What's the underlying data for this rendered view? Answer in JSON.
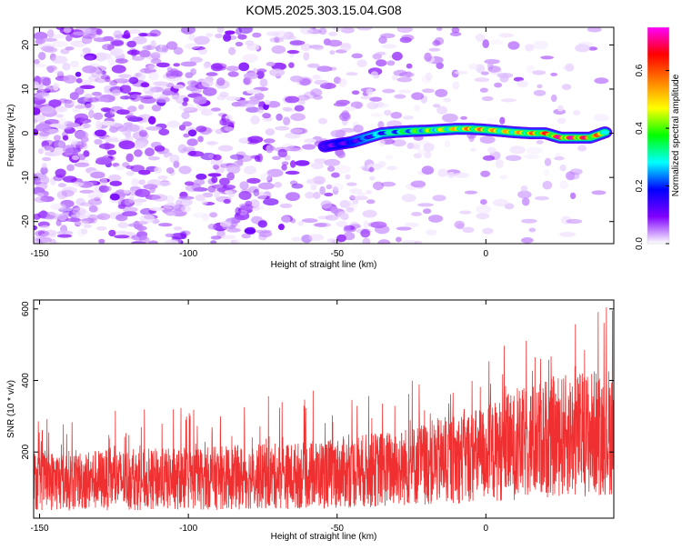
{
  "title": "KOM5.2025.303.15.04.G08",
  "chart_data": [
    {
      "type": "heatmap",
      "title": "KOM5.2025.303.15.04.G08",
      "xlabel": "Height of straight line (km)",
      "ylabel": "Frequency (Hz)",
      "xlim": [
        -152,
        43
      ],
      "ylim": [
        -25,
        24
      ],
      "xticks": [
        -150,
        -100,
        -50,
        0
      ],
      "yticks": [
        -20,
        -10,
        0,
        10,
        20
      ],
      "signal_track": {
        "x": [
          -54,
          -50,
          -45,
          -40,
          -35,
          -30,
          -25,
          -20,
          -15,
          -10,
          -5,
          0,
          5,
          10,
          15,
          20,
          25,
          30,
          35,
          40
        ],
        "y": [
          -3,
          -2.5,
          -2,
          -1,
          0,
          0.3,
          0.5,
          0.6,
          0.8,
          1,
          1,
          0.8,
          0.5,
          0.2,
          0,
          0,
          -1,
          -1,
          -1,
          0.2
        ],
        "amplitude": [
          0.15,
          0.18,
          0.2,
          0.25,
          0.3,
          0.35,
          0.4,
          0.45,
          0.5,
          0.55,
          0.6,
          0.6,
          0.55,
          0.55,
          0.6,
          0.65,
          0.75,
          0.75,
          0.7,
          0.55
        ]
      },
      "colorbar": {
        "label": "Normalized spectral amplitude",
        "range": [
          0,
          0.75
        ],
        "ticks": [
          0.0,
          0.2,
          0.4,
          0.6
        ],
        "colors": [
          "#ffffff",
          "#8000ff",
          "#0000ff",
          "#00ffff",
          "#00ff00",
          "#ffff00",
          "#ff8000",
          "#ff0000",
          "#ff00ff"
        ]
      }
    },
    {
      "type": "line",
      "xlabel": "Height of straight line (km)",
      "ylabel": "SNR (10 * v/v)",
      "xlim": [
        -152,
        43
      ],
      "ylim": [
        15,
        625
      ],
      "xticks": [
        -150,
        -100,
        -50,
        0
      ],
      "yticks": [
        200,
        400,
        600
      ],
      "color": "#f03030",
      "trend": {
        "x": [
          -152,
          -100,
          -60,
          -30,
          0,
          20,
          43
        ],
        "mean": [
          120,
          125,
          135,
          155,
          195,
          240,
          260
        ],
        "peak": [
          300,
          330,
          370,
          400,
          480,
          600,
          620
        ]
      }
    }
  ]
}
